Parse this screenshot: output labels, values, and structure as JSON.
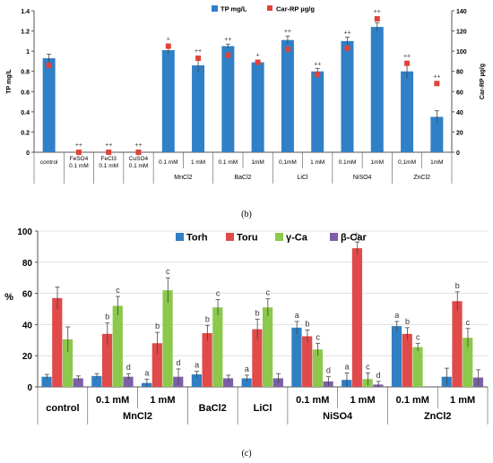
{
  "colors": {
    "tp_bar": "#2f80c7",
    "car_marker": "#e0433a",
    "torh": "#2f7fc3",
    "toru": "#e04a4a",
    "gca": "#8cc84b",
    "bcar": "#7c5fa8",
    "error": "#444444",
    "axis": "#555555",
    "grid": "#d9d9d9"
  },
  "chart_data": [
    {
      "type": "bar",
      "panel_label": "(b)",
      "legend": [
        "TP mg/L",
        "Car-RP µg/g"
      ],
      "legend_position": "top-center",
      "ylabel_left": "TP mg/L",
      "ylabel_right": "Car-RP µg/g",
      "ylim_left": [
        0,
        1.4
      ],
      "yticks_left": [
        "0",
        "0.2",
        "0.4",
        "0.6",
        "0.8",
        "1",
        "1.2",
        "1.4"
      ],
      "ylim_right": [
        0,
        140
      ],
      "yticks_right": [
        "0",
        "20",
        "40",
        "60",
        "80",
        "100",
        "120",
        "140"
      ],
      "categories": [
        {
          "label": "control",
          "tp": 0.93,
          "tp_err": 0.04,
          "car": 86,
          "sig": ""
        },
        {
          "label": "FeSO4 0.1 mM",
          "tp": 0,
          "tp_err": 0,
          "car": 0,
          "sig": "++"
        },
        {
          "label": "FeCl3 0.1 mM",
          "tp": 0,
          "tp_err": 0,
          "car": 0,
          "sig": "++"
        },
        {
          "label": "CuSO4 0.1 mM",
          "tp": 0,
          "tp_err": 0,
          "car": 0,
          "sig": "++"
        },
        {
          "label": "0.1 mM",
          "tp": 1.01,
          "tp_err": 0.04,
          "car": 105,
          "sig": "+"
        },
        {
          "label": "1 mM",
          "tp": 0.86,
          "tp_err": 0.07,
          "car": 93,
          "sig": "++"
        },
        {
          "label": "0.1 mM",
          "tp": 1.05,
          "tp_err": 0.02,
          "car": 96,
          "sig": "++"
        },
        {
          "label": "1mM",
          "tp": 0.89,
          "tp_err": 0.02,
          "car": 89,
          "sig": "+"
        },
        {
          "label": "0,1mM",
          "tp": 1.11,
          "tp_err": 0.04,
          "car": 102,
          "sig": "++"
        },
        {
          "label": "1 mM",
          "tp": 0.8,
          "tp_err": 0.03,
          "car": 77,
          "sig": "++"
        },
        {
          "label": "0.1mM",
          "tp": 1.1,
          "tp_err": 0.04,
          "car": 103,
          "sig": "++"
        },
        {
          "label": "1mM",
          "tp": 1.24,
          "tp_err": 0.04,
          "car": 132,
          "sig": "++"
        },
        {
          "label": "0,1mM",
          "tp": 0.8,
          "tp_err": 0.07,
          "car": 88,
          "sig": "++"
        },
        {
          "label": "1mM",
          "tp": 0.35,
          "tp_err": 0.06,
          "car": 68,
          "sig": "++"
        }
      ],
      "groups": [
        {
          "label": "MnCl2",
          "from": 4,
          "to": 5
        },
        {
          "label": "BaCl2",
          "from": 6,
          "to": 7
        },
        {
          "label": "LiCl",
          "from": 8,
          "to": 9
        },
        {
          "label": "NiSO4",
          "from": 10,
          "to": 11
        },
        {
          "label": "ZnCl2",
          "from": 12,
          "to": 13
        }
      ]
    },
    {
      "type": "bar",
      "panel_label": "(c)",
      "ylabel": "%",
      "ylim": [
        0,
        100
      ],
      "yticks": [
        "0",
        "20",
        "40",
        "60",
        "80",
        "100"
      ],
      "legend_position": "top-center",
      "series": [
        {
          "name": "Torh",
          "color_key": "torh"
        },
        {
          "name": "Toru",
          "color_key": "toru"
        },
        {
          "name": "γ-Ca",
          "color_key": "gca"
        },
        {
          "name": "β-Car",
          "color_key": "bcar"
        }
      ],
      "categories": [
        {
          "label": "control",
          "group": "",
          "values": [
            6.5,
            57,
            30.5,
            5.5
          ],
          "errors": [
            1.5,
            7,
            8,
            1.5
          ],
          "sig": [
            "",
            "",
            "",
            ""
          ]
        },
        {
          "label": "0.1 mM",
          "group": "MnCl2",
          "values": [
            7,
            34,
            52,
            6.5
          ],
          "errors": [
            1.5,
            7,
            6,
            2
          ],
          "sig": [
            "",
            "b",
            "c",
            "d"
          ]
        },
        {
          "label": "1 mM",
          "group": "MnCl2",
          "values": [
            2.5,
            28,
            62,
            6.5
          ],
          "errors": [
            2.5,
            7,
            8,
            5
          ],
          "sig": [
            "a",
            "b",
            "c",
            "d"
          ]
        },
        {
          "label": "BaCl2",
          "group": "",
          "values": [
            8,
            34.5,
            51,
            5.5
          ],
          "errors": [
            2,
            5,
            5,
            2
          ],
          "sig": [
            "a",
            "b",
            "c",
            ""
          ]
        },
        {
          "label": "LiCl",
          "group": "",
          "values": [
            5.5,
            37,
            51,
            5.5
          ],
          "errors": [
            2,
            6.5,
            5.5,
            3
          ],
          "sig": [
            "a",
            "b",
            "c",
            ""
          ]
        },
        {
          "label": "0.1 mM",
          "group": "NiSO4",
          "values": [
            38,
            32.5,
            24,
            3.5
          ],
          "errors": [
            4,
            4,
            4,
            3
          ],
          "sig": [
            "a",
            "b",
            "c",
            "d"
          ]
        },
        {
          "label": "1 mM",
          "group": "NiSO4",
          "values": [
            4.5,
            89,
            5,
            1.5
          ],
          "errors": [
            4.5,
            4,
            4,
            2
          ],
          "sig": [
            "a",
            "b",
            "c",
            "d"
          ]
        },
        {
          "label": "0.1 mM",
          "group": "ZnCl2",
          "values": [
            39,
            34,
            25.5,
            0
          ],
          "errors": [
            3,
            4,
            2.5,
            0
          ],
          "sig": [
            "a",
            "b",
            "c",
            ""
          ]
        },
        {
          "label": "1 mM",
          "group": "ZnCl2",
          "values": [
            6.5,
            55,
            31.5,
            6
          ],
          "errors": [
            5.5,
            6,
            6,
            5
          ],
          "sig": [
            "",
            "b",
            "c",
            ""
          ]
        }
      ],
      "groups": [
        {
          "label": "MnCl2",
          "from": 1,
          "to": 2
        },
        {
          "label": "NiSO4",
          "from": 5,
          "to": 6
        },
        {
          "label": "ZnCl2",
          "from": 7,
          "to": 8
        }
      ]
    }
  ]
}
